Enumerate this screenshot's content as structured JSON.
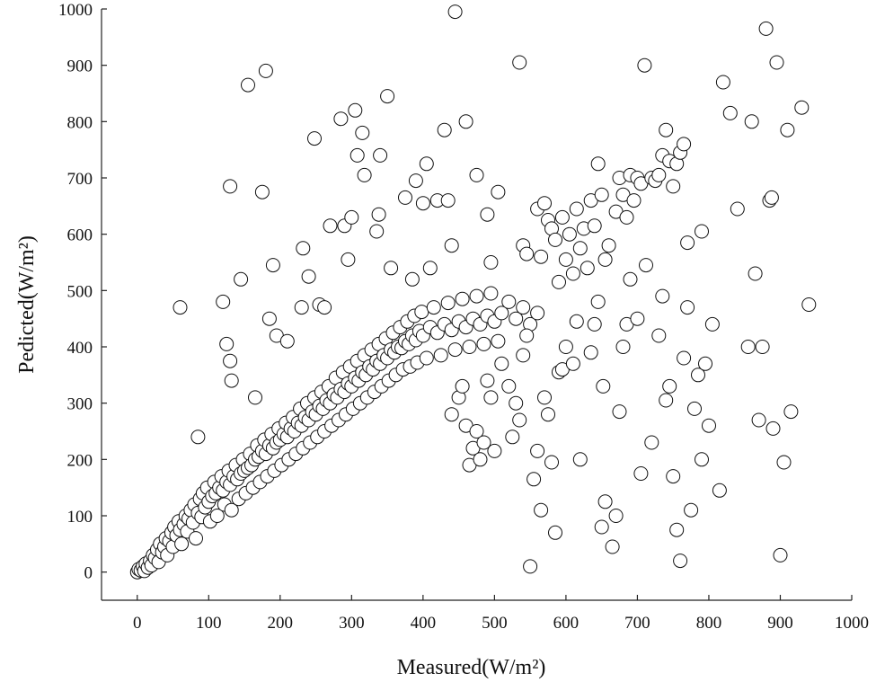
{
  "chart_data": {
    "type": "scatter",
    "title": "",
    "xlabel": "Measured(W/m²)",
    "ylabel": "Pedicted(W/m²)",
    "xlim": [
      -50,
      1000
    ],
    "ylim": [
      -50,
      1000
    ],
    "xticks": [
      "0",
      "100",
      "200",
      "300",
      "400",
      "500",
      "600",
      "700",
      "800",
      "900",
      "1000"
    ],
    "yticks": [
      "0",
      "100",
      "200",
      "300",
      "400",
      "500",
      "600",
      "700",
      "800",
      "900",
      "1000"
    ],
    "grid": false,
    "marker": "open-circle",
    "points": [
      [
        0,
        0
      ],
      [
        2,
        5
      ],
      [
        5,
        3
      ],
      [
        8,
        10
      ],
      [
        10,
        2
      ],
      [
        12,
        15
      ],
      [
        15,
        8
      ],
      [
        18,
        20
      ],
      [
        20,
        12
      ],
      [
        22,
        30
      ],
      [
        25,
        25
      ],
      [
        28,
        40
      ],
      [
        30,
        18
      ],
      [
        32,
        50
      ],
      [
        35,
        35
      ],
      [
        38,
        45
      ],
      [
        40,
        60
      ],
      [
        42,
        30
      ],
      [
        45,
        55
      ],
      [
        48,
        70
      ],
      [
        50,
        45
      ],
      [
        52,
        80
      ],
      [
        55,
        65
      ],
      [
        58,
        90
      ],
      [
        60,
        75
      ],
      [
        62,
        50
      ],
      [
        65,
        85
      ],
      [
        68,
        100
      ],
      [
        70,
        72
      ],
      [
        72,
        95
      ],
      [
        75,
        110
      ],
      [
        78,
        88
      ],
      [
        80,
        120
      ],
      [
        82,
        60
      ],
      [
        85,
        105
      ],
      [
        88,
        130
      ],
      [
        90,
        98
      ],
      [
        92,
        140
      ],
      [
        95,
        115
      ],
      [
        98,
        150
      ],
      [
        100,
        125
      ],
      [
        102,
        90
      ],
      [
        105,
        135
      ],
      [
        108,
        160
      ],
      [
        110,
        140
      ],
      [
        112,
        100
      ],
      [
        115,
        150
      ],
      [
        118,
        170
      ],
      [
        120,
        145
      ],
      [
        122,
        120
      ],
      [
        125,
        160
      ],
      [
        128,
        180
      ],
      [
        130,
        155
      ],
      [
        132,
        110
      ],
      [
        135,
        170
      ],
      [
        138,
        190
      ],
      [
        140,
        165
      ],
      [
        142,
        130
      ],
      [
        145,
        175
      ],
      [
        148,
        200
      ],
      [
        150,
        180
      ],
      [
        152,
        140
      ],
      [
        155,
        185
      ],
      [
        158,
        210
      ],
      [
        160,
        190
      ],
      [
        162,
        150
      ],
      [
        165,
        200
      ],
      [
        168,
        225
      ],
      [
        170,
        205
      ],
      [
        172,
        160
      ],
      [
        175,
        215
      ],
      [
        178,
        235
      ],
      [
        180,
        210
      ],
      [
        182,
        170
      ],
      [
        185,
        225
      ],
      [
        188,
        245
      ],
      [
        190,
        220
      ],
      [
        192,
        180
      ],
      [
        195,
        230
      ],
      [
        198,
        255
      ],
      [
        200,
        235
      ],
      [
        202,
        190
      ],
      [
        205,
        245
      ],
      [
        208,
        265
      ],
      [
        210,
        240
      ],
      [
        212,
        200
      ],
      [
        215,
        255
      ],
      [
        218,
        275
      ],
      [
        220,
        250
      ],
      [
        222,
        210
      ],
      [
        225,
        265
      ],
      [
        228,
        290
      ],
      [
        230,
        260
      ],
      [
        232,
        220
      ],
      [
        235,
        275
      ],
      [
        238,
        300
      ],
      [
        240,
        270
      ],
      [
        242,
        230
      ],
      [
        245,
        285
      ],
      [
        248,
        310
      ],
      [
        250,
        280
      ],
      [
        252,
        240
      ],
      [
        255,
        295
      ],
      [
        258,
        320
      ],
      [
        260,
        290
      ],
      [
        262,
        250
      ],
      [
        265,
        305
      ],
      [
        268,
        330
      ],
      [
        270,
        300
      ],
      [
        272,
        260
      ],
      [
        275,
        315
      ],
      [
        278,
        345
      ],
      [
        280,
        310
      ],
      [
        282,
        270
      ],
      [
        285,
        325
      ],
      [
        288,
        355
      ],
      [
        290,
        320
      ],
      [
        292,
        280
      ],
      [
        295,
        335
      ],
      [
        298,
        365
      ],
      [
        300,
        330
      ],
      [
        302,
        290
      ],
      [
        305,
        345
      ],
      [
        308,
        375
      ],
      [
        310,
        340
      ],
      [
        312,
        300
      ],
      [
        315,
        355
      ],
      [
        318,
        385
      ],
      [
        320,
        350
      ],
      [
        322,
        310
      ],
      [
        325,
        365
      ],
      [
        328,
        395
      ],
      [
        330,
        360
      ],
      [
        332,
        320
      ],
      [
        335,
        375
      ],
      [
        338,
        405
      ],
      [
        340,
        370
      ],
      [
        342,
        330
      ],
      [
        345,
        385
      ],
      [
        348,
        415
      ],
      [
        350,
        380
      ],
      [
        352,
        340
      ],
      [
        355,
        395
      ],
      [
        358,
        425
      ],
      [
        360,
        390
      ],
      [
        362,
        350
      ],
      [
        365,
        400
      ],
      [
        368,
        435
      ],
      [
        370,
        398
      ],
      [
        372,
        360
      ],
      [
        375,
        410
      ],
      [
        378,
        445
      ],
      [
        380,
        405
      ],
      [
        382,
        365
      ],
      [
        385,
        420
      ],
      [
        388,
        455
      ],
      [
        390,
        412
      ],
      [
        392,
        372
      ],
      [
        395,
        428
      ],
      [
        398,
        462
      ],
      [
        400,
        420
      ],
      [
        405,
        380
      ],
      [
        410,
        435
      ],
      [
        415,
        470
      ],
      [
        420,
        425
      ],
      [
        425,
        385
      ],
      [
        430,
        440
      ],
      [
        435,
        478
      ],
      [
        440,
        430
      ],
      [
        445,
        395
      ],
      [
        450,
        445
      ],
      [
        455,
        485
      ],
      [
        460,
        435
      ],
      [
        465,
        400
      ],
      [
        470,
        450
      ],
      [
        475,
        490
      ],
      [
        480,
        440
      ],
      [
        485,
        405
      ],
      [
        490,
        455
      ],
      [
        495,
        495
      ],
      [
        500,
        445
      ],
      [
        505,
        410
      ],
      [
        510,
        460
      ],
      [
        520,
        480
      ],
      [
        530,
        450
      ],
      [
        540,
        470
      ],
      [
        550,
        440
      ],
      [
        560,
        460
      ],
      [
        60,
        470
      ],
      [
        85,
        240
      ],
      [
        120,
        480
      ],
      [
        125,
        405
      ],
      [
        130,
        685
      ],
      [
        130,
        375
      ],
      [
        132,
        340
      ],
      [
        145,
        520
      ],
      [
        155,
        865
      ],
      [
        165,
        310
      ],
      [
        175,
        675
      ],
      [
        180,
        890
      ],
      [
        185,
        450
      ],
      [
        190,
        545
      ],
      [
        195,
        420
      ],
      [
        210,
        410
      ],
      [
        230,
        470
      ],
      [
        232,
        575
      ],
      [
        240,
        525
      ],
      [
        248,
        770
      ],
      [
        255,
        475
      ],
      [
        262,
        470
      ],
      [
        270,
        615
      ],
      [
        285,
        805
      ],
      [
        290,
        615
      ],
      [
        295,
        555
      ],
      [
        300,
        630
      ],
      [
        305,
        820
      ],
      [
        308,
        740
      ],
      [
        315,
        780
      ],
      [
        318,
        705
      ],
      [
        335,
        605
      ],
      [
        338,
        635
      ],
      [
        340,
        740
      ],
      [
        350,
        845
      ],
      [
        355,
        540
      ],
      [
        375,
        665
      ],
      [
        385,
        520
      ],
      [
        390,
        695
      ],
      [
        400,
        655
      ],
      [
        405,
        725
      ],
      [
        410,
        540
      ],
      [
        420,
        660
      ],
      [
        430,
        785
      ],
      [
        435,
        660
      ],
      [
        440,
        580
      ],
      [
        445,
        995
      ],
      [
        460,
        800
      ],
      [
        475,
        705
      ],
      [
        490,
        635
      ],
      [
        495,
        550
      ],
      [
        505,
        675
      ],
      [
        535,
        905
      ],
      [
        540,
        580
      ],
      [
        545,
        565
      ],
      [
        560,
        645
      ],
      [
        565,
        560
      ],
      [
        570,
        655
      ],
      [
        575,
        625
      ],
      [
        580,
        610
      ],
      [
        585,
        590
      ],
      [
        590,
        515
      ],
      [
        595,
        630
      ],
      [
        600,
        555
      ],
      [
        605,
        600
      ],
      [
        610,
        530
      ],
      [
        615,
        645
      ],
      [
        620,
        575
      ],
      [
        625,
        610
      ],
      [
        630,
        540
      ],
      [
        635,
        660
      ],
      [
        640,
        615
      ],
      [
        645,
        725
      ],
      [
        650,
        670
      ],
      [
        655,
        555
      ],
      [
        660,
        580
      ],
      [
        670,
        640
      ],
      [
        675,
        700
      ],
      [
        680,
        670
      ],
      [
        685,
        630
      ],
      [
        690,
        705
      ],
      [
        695,
        660
      ],
      [
        700,
        700
      ],
      [
        705,
        690
      ],
      [
        710,
        900
      ],
      [
        712,
        545
      ],
      [
        720,
        700
      ],
      [
        725,
        695
      ],
      [
        730,
        705
      ],
      [
        735,
        740
      ],
      [
        740,
        785
      ],
      [
        745,
        730
      ],
      [
        750,
        685
      ],
      [
        755,
        725
      ],
      [
        760,
        745
      ],
      [
        765,
        760
      ],
      [
        770,
        585
      ],
      [
        790,
        605
      ],
      [
        440,
        280
      ],
      [
        450,
        310
      ],
      [
        455,
        330
      ],
      [
        460,
        260
      ],
      [
        465,
        190
      ],
      [
        470,
        220
      ],
      [
        475,
        250
      ],
      [
        480,
        200
      ],
      [
        485,
        230
      ],
      [
        490,
        340
      ],
      [
        495,
        310
      ],
      [
        500,
        215
      ],
      [
        510,
        370
      ],
      [
        520,
        330
      ],
      [
        525,
        240
      ],
      [
        530,
        300
      ],
      [
        535,
        270
      ],
      [
        540,
        385
      ],
      [
        545,
        420
      ],
      [
        550,
        10
      ],
      [
        555,
        165
      ],
      [
        560,
        215
      ],
      [
        565,
        110
      ],
      [
        570,
        310
      ],
      [
        575,
        280
      ],
      [
        580,
        195
      ],
      [
        585,
        70
      ],
      [
        590,
        355
      ],
      [
        595,
        360
      ],
      [
        600,
        400
      ],
      [
        610,
        370
      ],
      [
        615,
        445
      ],
      [
        620,
        200
      ],
      [
        635,
        390
      ],
      [
        640,
        440
      ],
      [
        645,
        480
      ],
      [
        650,
        80
      ],
      [
        652,
        330
      ],
      [
        655,
        125
      ],
      [
        665,
        45
      ],
      [
        670,
        100
      ],
      [
        675,
        285
      ],
      [
        680,
        400
      ],
      [
        685,
        440
      ],
      [
        690,
        520
      ],
      [
        700,
        450
      ],
      [
        705,
        175
      ],
      [
        720,
        230
      ],
      [
        730,
        420
      ],
      [
        735,
        490
      ],
      [
        740,
        305
      ],
      [
        745,
        330
      ],
      [
        750,
        170
      ],
      [
        755,
        75
      ],
      [
        760,
        20
      ],
      [
        765,
        380
      ],
      [
        770,
        470
      ],
      [
        775,
        110
      ],
      [
        780,
        290
      ],
      [
        785,
        350
      ],
      [
        790,
        200
      ],
      [
        795,
        370
      ],
      [
        800,
        260
      ],
      [
        805,
        440
      ],
      [
        815,
        145
      ],
      [
        820,
        870
      ],
      [
        830,
        815
      ],
      [
        840,
        645
      ],
      [
        855,
        400
      ],
      [
        860,
        800
      ],
      [
        865,
        530
      ],
      [
        870,
        270
      ],
      [
        875,
        400
      ],
      [
        880,
        965
      ],
      [
        885,
        660
      ],
      [
        888,
        665
      ],
      [
        890,
        255
      ],
      [
        895,
        905
      ],
      [
        900,
        30
      ],
      [
        905,
        195
      ],
      [
        910,
        785
      ],
      [
        915,
        285
      ],
      [
        930,
        825
      ],
      [
        940,
        475
      ]
    ]
  }
}
